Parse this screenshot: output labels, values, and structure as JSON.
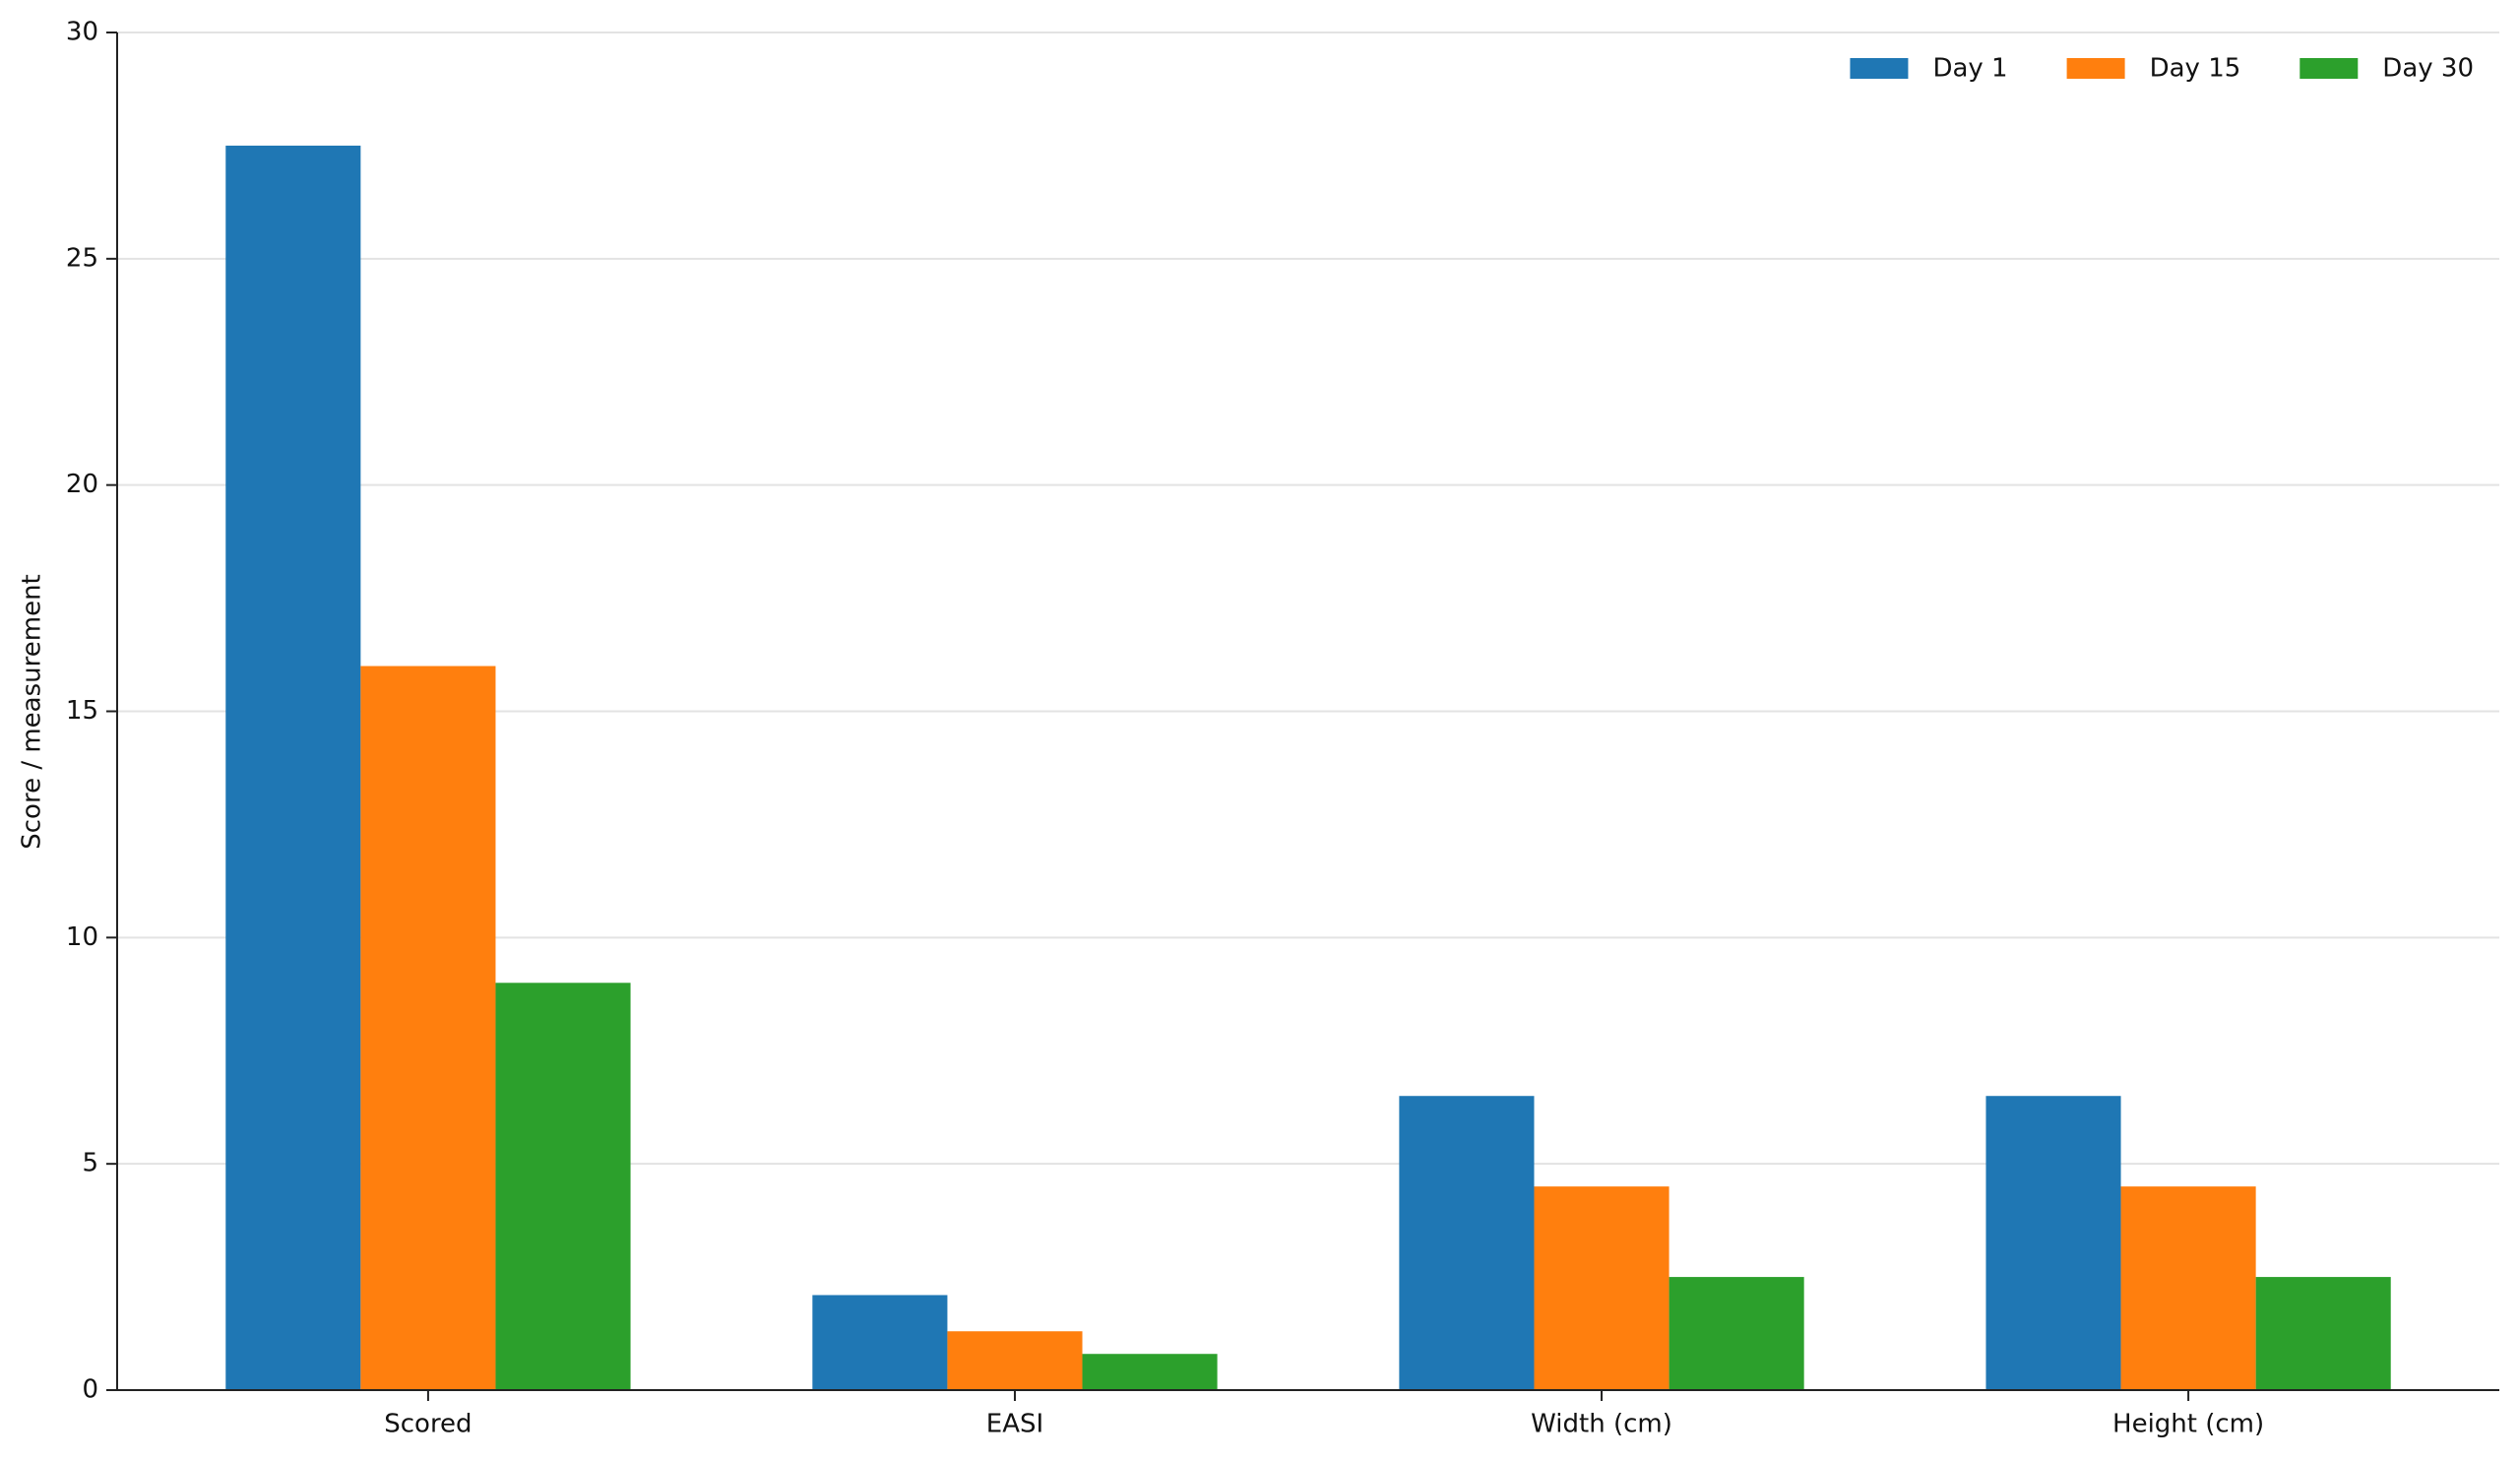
{
  "chart_data": {
    "type": "bar",
    "y_label": "Score / measurement",
    "categories": [
      "Scored",
      "EASI",
      "Width (cm)",
      "Height (cm)"
    ],
    "series": [
      {
        "name": "Day 1",
        "color": "#1f77b4",
        "values": [
          27.5,
          2.1,
          6.5,
          6.5
        ]
      },
      {
        "name": "Day 15",
        "color": "#ff7f0e",
        "values": [
          16,
          1.3,
          4.5,
          4.5
        ]
      },
      {
        "name": "Day 30",
        "color": "#2ca02c",
        "values": [
          9,
          0.8,
          2.5,
          2.5
        ]
      }
    ],
    "ylim": [
      0,
      30
    ],
    "yticks": [
      0,
      5,
      10,
      15,
      20,
      25,
      30
    ],
    "grid": true,
    "legend": "upper right"
  }
}
